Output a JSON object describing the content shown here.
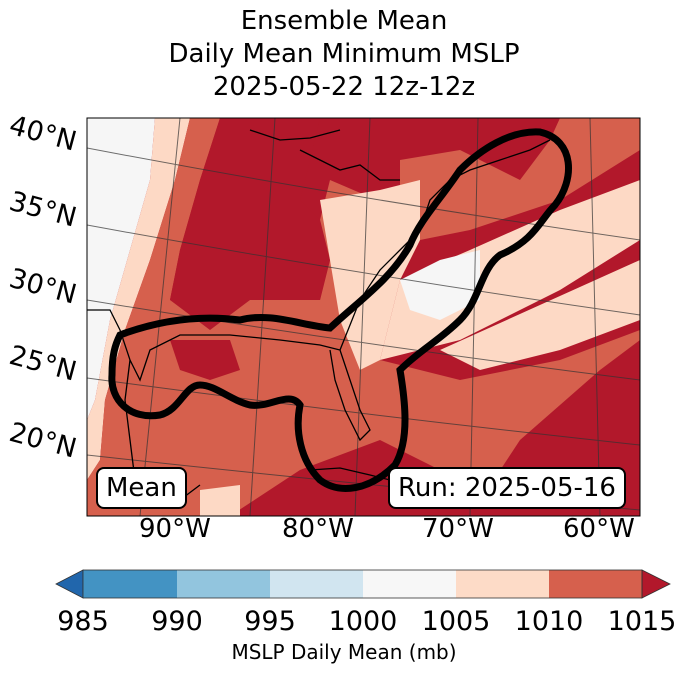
{
  "title": {
    "line1": "Ensemble Mean",
    "line2": "Daily Mean Minimum MSLP",
    "line3": "2025-05-22 12z-12z"
  },
  "map": {
    "latitude_labels": [
      "40°N",
      "35°N",
      "30°N",
      "25°N",
      "20°N"
    ],
    "longitude_labels": [
      "90°W",
      "80°W",
      "70°W",
      "60°W"
    ],
    "left_box": "Mean",
    "right_box": "Run: 2025-05-16",
    "contour_color": "#000000",
    "colors": {
      "995_1000": "#cfe3ef",
      "1000_1005": "#f6f6f6",
      "1005_1010": "#fdd9c5",
      "1010_1015": "#d6604d",
      "over_1015": "#b2182b",
      "land_coast": "#000000"
    }
  },
  "colorbar": {
    "label": "MSLP Daily Mean (mb)",
    "ticks": [
      "985",
      "990",
      "995",
      "1000",
      "1005",
      "1010",
      "1015"
    ],
    "bins": [
      {
        "range": "<985",
        "color": "#2166ac"
      },
      {
        "range": "985-990",
        "color": "#4393c3"
      },
      {
        "range": "990-995",
        "color": "#92c5de"
      },
      {
        "range": "995-1000",
        "color": "#d1e5f0"
      },
      {
        "range": "1000-1005",
        "color": "#f7f7f7"
      },
      {
        "range": "1005-1010",
        "color": "#fddbc7"
      },
      {
        "range": "1010-1015",
        "color": "#d6604d"
      },
      {
        "range": ">1015",
        "color": "#b2182b"
      }
    ]
  }
}
